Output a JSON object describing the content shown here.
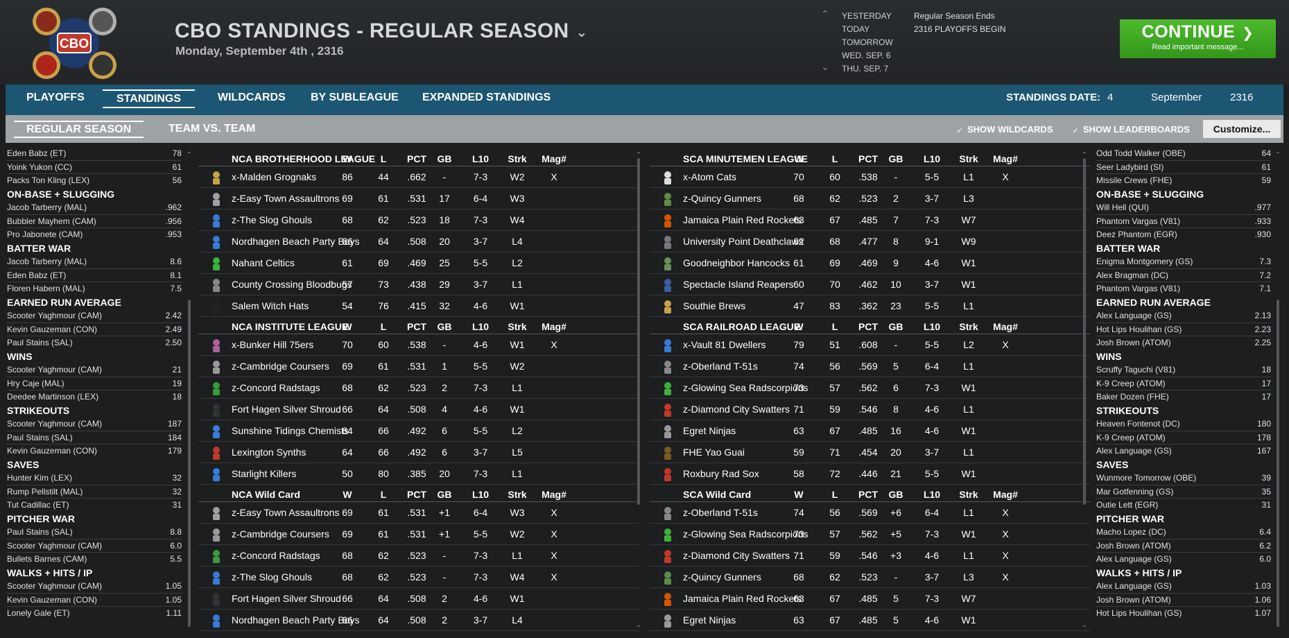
{
  "header": {
    "title": "CBO STANDINGS - REGULAR SEASON",
    "date": "Monday, September 4th , 2316",
    "logo_texts": [
      "CBO"
    ],
    "date_nav": [
      "YESTERDAY",
      "TODAY",
      "TOMORROW",
      "WED. SEP. 6",
      "THU. SEP. 7"
    ],
    "events": [
      "Regular Season Ends",
      "2316 PLAYOFFS BEGIN"
    ],
    "continue_label": "CONTINUE",
    "continue_sub": "Read important message..."
  },
  "tabs": {
    "primary": [
      "PLAYOFFS",
      "STANDINGS",
      "WILDCARDS",
      "BY SUBLEAGUE",
      "EXPANDED STANDINGS"
    ],
    "primary_active": 1,
    "standings_date_label": "STANDINGS DATE:",
    "standings_day": "4",
    "standings_month": "September",
    "standings_year": "2316",
    "secondary": [
      "REGULAR SEASON",
      "TEAM VS. TEAM"
    ],
    "secondary_active": 0,
    "show_wildcards": "SHOW WILDCARDS",
    "show_leaderboards": "SHOW LEADERBOARDS",
    "customize": "Customize..."
  },
  "columns": [
    "W",
    "L",
    "PCT",
    "GB",
    "L10",
    "Strk",
    "Mag#"
  ],
  "left_leaders": [
    {
      "title": "",
      "rows": [
        [
          "Eden Babz (ET)",
          "78"
        ],
        [
          "Yoink Yukon (CC)",
          "61"
        ],
        [
          "Packs Ton Kling (LEX)",
          "56"
        ]
      ]
    },
    {
      "title": "ON-BASE + SLUGGING",
      "rows": [
        [
          "Jacob Tarberry (MAL)",
          ".962"
        ],
        [
          "Bubbler Mayhem (CAM)",
          ".956"
        ],
        [
          "Pro Jabonete (CAM)",
          ".953"
        ]
      ]
    },
    {
      "title": "BATTER WAR",
      "rows": [
        [
          "Jacob Tarberry (MAL)",
          "8.6"
        ],
        [
          "Eden Babz (ET)",
          "8.1"
        ],
        [
          "Floren Habern (MAL)",
          "7.5"
        ]
      ]
    },
    {
      "title": "EARNED RUN AVERAGE",
      "rows": [
        [
          "Scooter Yaghmour (CAM)",
          "2.42"
        ],
        [
          "Kevin Gauzeman (CON)",
          "2.49"
        ],
        [
          "Paul Stains (SAL)",
          "2.50"
        ]
      ]
    },
    {
      "title": "WINS",
      "rows": [
        [
          "Scooter Yaghmour (CAM)",
          "21"
        ],
        [
          "Hry Caje (MAL)",
          "19"
        ],
        [
          "Deedee Martinson (LEX)",
          "18"
        ]
      ]
    },
    {
      "title": "STRIKEOUTS",
      "rows": [
        [
          "Scooter Yaghmour (CAM)",
          "187"
        ],
        [
          "Paul Stains (SAL)",
          "184"
        ],
        [
          "Kevin Gauzeman (CON)",
          "179"
        ]
      ]
    },
    {
      "title": "SAVES",
      "rows": [
        [
          "Hunter Kim (LEX)",
          "32"
        ],
        [
          "Rump Pellstilt (MAL)",
          "32"
        ],
        [
          "Tut Cadillac (ET)",
          "31"
        ]
      ]
    },
    {
      "title": "PITCHER WAR",
      "rows": [
        [
          "Paul Stains (SAL)",
          "8.8"
        ],
        [
          "Scooter Yaghmour (CAM)",
          "6.0"
        ],
        [
          "Bullets Barnes (CAM)",
          "5.5"
        ]
      ]
    },
    {
      "title": "WALKS + HITS / IP",
      "rows": [
        [
          "Scooter Yaghmour (CAM)",
          "1.05"
        ],
        [
          "Kevin Gauzeman (CON)",
          "1.05"
        ],
        [
          "Lonely Gale (ET)",
          "1.11"
        ]
      ]
    }
  ],
  "right_leaders": [
    {
      "title": "",
      "rows": [
        [
          "Odd Todd Walker (OBE)",
          "64"
        ],
        [
          "Seer Ladybird (SI)",
          "61"
        ],
        [
          "Missile Crews (FHE)",
          "59"
        ]
      ]
    },
    {
      "title": "ON-BASE + SLUGGING",
      "rows": [
        [
          "Will Hell (QUI)",
          ".977"
        ],
        [
          "Phantom Vargas (V81)",
          ".933"
        ],
        [
          "Deez Phantom (EGR)",
          ".930"
        ]
      ]
    },
    {
      "title": "BATTER WAR",
      "rows": [
        [
          "Enigma Montgomery (GS)",
          "7.3"
        ],
        [
          "Alex Bragman (DC)",
          "7.2"
        ],
        [
          "Phantom Vargas (V81)",
          "7.1"
        ]
      ]
    },
    {
      "title": "EARNED RUN AVERAGE",
      "rows": [
        [
          "Alex Language (GS)",
          "2.13"
        ],
        [
          "Hot Lips Houlihan (GS)",
          "2.23"
        ],
        [
          "Josh Brown (ATOM)",
          "2.25"
        ]
      ]
    },
    {
      "title": "WINS",
      "rows": [
        [
          "Scruffy Taguchi (V81)",
          "18"
        ],
        [
          "K-9 Creep (ATOM)",
          "17"
        ],
        [
          "Baker Dozen (FHE)",
          "17"
        ]
      ]
    },
    {
      "title": "STRIKEOUTS",
      "rows": [
        [
          "Heaven Fontenot (DC)",
          "180"
        ],
        [
          "K-9 Creep (ATOM)",
          "178"
        ],
        [
          "Alex Language (GS)",
          "167"
        ]
      ]
    },
    {
      "title": "SAVES",
      "rows": [
        [
          "Wunmore Tomorrow (OBE)",
          "39"
        ],
        [
          "Mar Gotfenning (GS)",
          "35"
        ],
        [
          "Outie Lett (EGR)",
          "31"
        ]
      ]
    },
    {
      "title": "PITCHER WAR",
      "rows": [
        [
          "Macho Lopez (DC)",
          "6.4"
        ],
        [
          "Josh Brown (ATOM)",
          "6.2"
        ],
        [
          "Alex Language (GS)",
          "6.0"
        ]
      ]
    },
    {
      "title": "WALKS + HITS / IP",
      "rows": [
        [
          "Alex Language (GS)",
          "1.03"
        ],
        [
          "Josh Brown (ATOM)",
          "1.06"
        ],
        [
          "Hot Lips Houlihan (GS)",
          "1.07"
        ]
      ]
    }
  ],
  "nca_tables": [
    {
      "name": "NCA BROTHERHOOD LEAGUE",
      "teams": [
        {
          "name": "x-Malden Grognaks",
          "w": "86",
          "l": "44",
          "pct": ".662",
          "gb": "-",
          "l10": "7-3",
          "strk": "W2",
          "mag": "X",
          "icon": "#c9a14a"
        },
        {
          "name": "z-Easy Town Assaultrons",
          "w": "69",
          "l": "61",
          "pct": ".531",
          "gb": "17",
          "l10": "6-4",
          "strk": "W3",
          "mag": "",
          "icon": "#a0a0a0"
        },
        {
          "name": "z-The Slog Ghouls",
          "w": "68",
          "l": "62",
          "pct": ".523",
          "gb": "18",
          "l10": "7-3",
          "strk": "W4",
          "mag": "",
          "icon": "#3a7bd5"
        },
        {
          "name": "Nordhagen Beach Party Boys",
          "w": "66",
          "l": "64",
          "pct": ".508",
          "gb": "20",
          "l10": "3-7",
          "strk": "L4",
          "mag": "",
          "icon": "#3a7bd5"
        },
        {
          "name": "Nahant Celtics",
          "w": "61",
          "l": "69",
          "pct": ".469",
          "gb": "25",
          "l10": "5-5",
          "strk": "L2",
          "mag": "",
          "icon": "#3bb33b"
        },
        {
          "name": "County Crossing Bloodbugs",
          "w": "57",
          "l": "73",
          "pct": ".438",
          "gb": "29",
          "l10": "3-7",
          "strk": "L1",
          "mag": "",
          "icon": "#888888"
        },
        {
          "name": "Salem Witch Hats",
          "w": "54",
          "l": "76",
          "pct": ".415",
          "gb": "32",
          "l10": "4-6",
          "strk": "W1",
          "mag": "",
          "icon": "#222222"
        }
      ]
    },
    {
      "name": "NCA INSTITUTE LEAGUE",
      "teams": [
        {
          "name": "x-Bunker Hill 75ers",
          "w": "70",
          "l": "60",
          "pct": ".538",
          "gb": "-",
          "l10": "4-6",
          "strk": "W1",
          "mag": "X",
          "icon": "#b05fa0"
        },
        {
          "name": "z-Cambridge Coursers",
          "w": "69",
          "l": "61",
          "pct": ".531",
          "gb": "1",
          "l10": "5-5",
          "strk": "W2",
          "mag": "",
          "icon": "#999999"
        },
        {
          "name": "z-Concord Radstags",
          "w": "68",
          "l": "62",
          "pct": ".523",
          "gb": "2",
          "l10": "7-3",
          "strk": "L1",
          "mag": "",
          "icon": "#3b9b3b"
        },
        {
          "name": "Fort Hagen Silver Shroud",
          "w": "66",
          "l": "64",
          "pct": ".508",
          "gb": "4",
          "l10": "4-6",
          "strk": "W1",
          "mag": "",
          "icon": "#333333"
        },
        {
          "name": "Sunshine Tidings Chemists",
          "w": "64",
          "l": "66",
          "pct": ".492",
          "gb": "6",
          "l10": "5-5",
          "strk": "L2",
          "mag": "",
          "icon": "#3a7bd5"
        },
        {
          "name": "Lexington Synths",
          "w": "64",
          "l": "66",
          "pct": ".492",
          "gb": "6",
          "l10": "3-7",
          "strk": "L5",
          "mag": "",
          "icon": "#c0392b"
        },
        {
          "name": "Starlight Killers",
          "w": "50",
          "l": "80",
          "pct": ".385",
          "gb": "20",
          "l10": "7-3",
          "strk": "L1",
          "mag": "",
          "icon": "#3a7bd5"
        }
      ]
    },
    {
      "name": "NCA  Wild Card",
      "teams": [
        {
          "name": "z-Easy Town Assaultrons",
          "w": "69",
          "l": "61",
          "pct": ".531",
          "gb": "+1",
          "l10": "6-4",
          "strk": "W3",
          "mag": "X",
          "icon": "#a0a0a0"
        },
        {
          "name": "z-Cambridge Coursers",
          "w": "69",
          "l": "61",
          "pct": ".531",
          "gb": "+1",
          "l10": "5-5",
          "strk": "W2",
          "mag": "X",
          "icon": "#999999"
        },
        {
          "name": "z-Concord Radstags",
          "w": "68",
          "l": "62",
          "pct": ".523",
          "gb": "-",
          "l10": "7-3",
          "strk": "L1",
          "mag": "X",
          "icon": "#3b9b3b"
        },
        {
          "name": "z-The Slog Ghouls",
          "w": "68",
          "l": "62",
          "pct": ".523",
          "gb": "-",
          "l10": "7-3",
          "strk": "W4",
          "mag": "X",
          "icon": "#3a7bd5"
        },
        {
          "name": "Fort Hagen Silver Shroud",
          "w": "66",
          "l": "64",
          "pct": ".508",
          "gb": "2",
          "l10": "4-6",
          "strk": "W1",
          "mag": "",
          "icon": "#333333"
        },
        {
          "name": "Nordhagen Beach Party Boys",
          "w": "66",
          "l": "64",
          "pct": ".508",
          "gb": "2",
          "l10": "3-7",
          "strk": "L4",
          "mag": "",
          "icon": "#3a7bd5"
        }
      ]
    }
  ],
  "sca_tables": [
    {
      "name": "SCA MINUTEMEN LEAGUE",
      "teams": [
        {
          "name": "x-Atom Cats",
          "w": "70",
          "l": "60",
          "pct": ".538",
          "gb": "-",
          "l10": "5-5",
          "strk": "L1",
          "mag": "X",
          "icon": "#dddddd"
        },
        {
          "name": "z-Quincy Gunners",
          "w": "68",
          "l": "62",
          "pct": ".523",
          "gb": "2",
          "l10": "3-7",
          "strk": "L3",
          "mag": "",
          "icon": "#5b8a4a"
        },
        {
          "name": "Jamaica Plain Red Rockets",
          "w": "63",
          "l": "67",
          "pct": ".485",
          "gb": "7",
          "l10": "7-3",
          "strk": "W7",
          "mag": "",
          "icon": "#d35400"
        },
        {
          "name": "University Point Deathclaws",
          "w": "62",
          "l": "68",
          "pct": ".477",
          "gb": "8",
          "l10": "9-1",
          "strk": "W9",
          "mag": "",
          "icon": "#777777"
        },
        {
          "name": "Goodneighbor Hancocks",
          "w": "61",
          "l": "69",
          "pct": ".469",
          "gb": "9",
          "l10": "4-6",
          "strk": "W1",
          "mag": "",
          "icon": "#6b8e5a"
        },
        {
          "name": "Spectacle Island Reapers",
          "w": "60",
          "l": "70",
          "pct": ".462",
          "gb": "10",
          "l10": "3-7",
          "strk": "W1",
          "mag": "",
          "icon": "#3a5fa0"
        },
        {
          "name": "Southie Brews",
          "w": "47",
          "l": "83",
          "pct": ".362",
          "gb": "23",
          "l10": "5-5",
          "strk": "L1",
          "mag": "",
          "icon": "#c9a14a"
        }
      ]
    },
    {
      "name": "SCA RAILROAD LEAGUE",
      "teams": [
        {
          "name": "x-Vault 81 Dwellers",
          "w": "79",
          "l": "51",
          "pct": ".608",
          "gb": "-",
          "l10": "5-5",
          "strk": "L2",
          "mag": "X",
          "icon": "#3a7bd5"
        },
        {
          "name": "z-Oberland T-51s",
          "w": "74",
          "l": "56",
          "pct": ".569",
          "gb": "5",
          "l10": "6-4",
          "strk": "L1",
          "mag": "",
          "icon": "#888888"
        },
        {
          "name": "z-Glowing Sea Radscorpions",
          "w": "73",
          "l": "57",
          "pct": ".562",
          "gb": "6",
          "l10": "7-3",
          "strk": "W1",
          "mag": "",
          "icon": "#3bb33b"
        },
        {
          "name": "z-Diamond City Swatters",
          "w": "71",
          "l": "59",
          "pct": ".546",
          "gb": "8",
          "l10": "4-6",
          "strk": "L1",
          "mag": "",
          "icon": "#c0392b"
        },
        {
          "name": "Egret Ninjas",
          "w": "63",
          "l": "67",
          "pct": ".485",
          "gb": "16",
          "l10": "4-6",
          "strk": "W1",
          "mag": "",
          "icon": "#999999"
        },
        {
          "name": "FHE Yao Guai",
          "w": "59",
          "l": "71",
          "pct": ".454",
          "gb": "20",
          "l10": "3-7",
          "strk": "L1",
          "mag": "",
          "icon": "#7a5a20"
        },
        {
          "name": "Roxbury Rad Sox",
          "w": "58",
          "l": "72",
          "pct": ".446",
          "gb": "21",
          "l10": "5-5",
          "strk": "W1",
          "mag": "",
          "icon": "#c0392b"
        }
      ]
    },
    {
      "name": "SCA  Wild Card",
      "teams": [
        {
          "name": "z-Oberland T-51s",
          "w": "74",
          "l": "56",
          "pct": ".569",
          "gb": "+6",
          "l10": "6-4",
          "strk": "L1",
          "mag": "X",
          "icon": "#888888"
        },
        {
          "name": "z-Glowing Sea Radscorpions",
          "w": "73",
          "l": "57",
          "pct": ".562",
          "gb": "+5",
          "l10": "7-3",
          "strk": "W1",
          "mag": "X",
          "icon": "#3bb33b"
        },
        {
          "name": "z-Diamond City Swatters",
          "w": "71",
          "l": "59",
          "pct": ".546",
          "gb": "+3",
          "l10": "4-6",
          "strk": "L1",
          "mag": "X",
          "icon": "#c0392b"
        },
        {
          "name": "z-Quincy Gunners",
          "w": "68",
          "l": "62",
          "pct": ".523",
          "gb": "-",
          "l10": "3-7",
          "strk": "L3",
          "mag": "X",
          "icon": "#5b8a4a"
        },
        {
          "name": "Jamaica Plain Red Rockets",
          "w": "63",
          "l": "67",
          "pct": ".485",
          "gb": "5",
          "l10": "7-3",
          "strk": "W7",
          "mag": "",
          "icon": "#d35400"
        },
        {
          "name": "Egret Ninjas",
          "w": "63",
          "l": "67",
          "pct": ".485",
          "gb": "5",
          "l10": "4-6",
          "strk": "W1",
          "mag": "",
          "icon": "#999999"
        }
      ]
    }
  ]
}
